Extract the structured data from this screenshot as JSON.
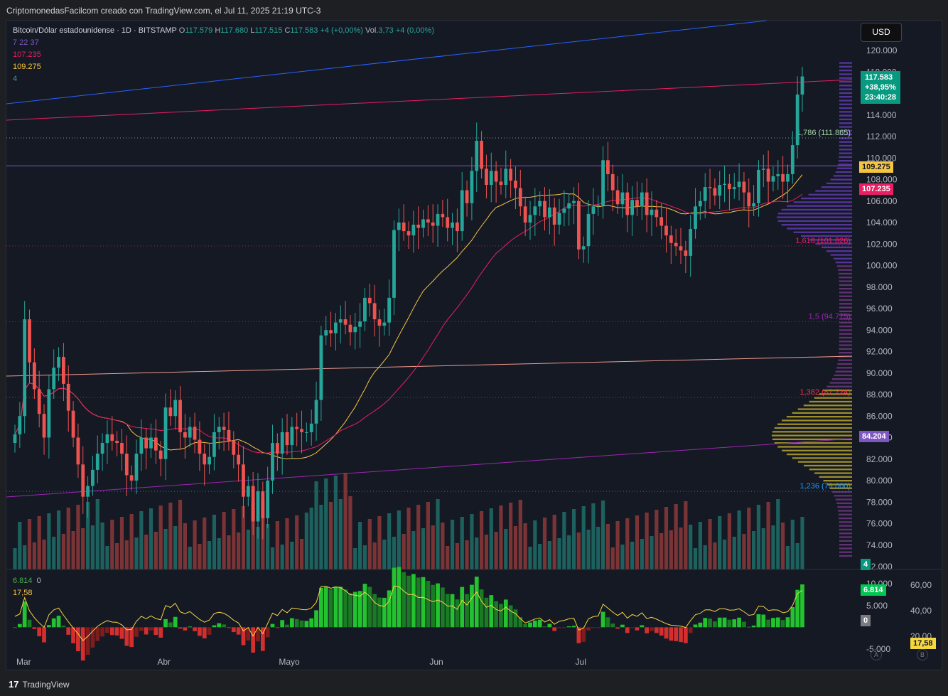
{
  "header": {
    "attribution": "CriptomonedasFacilcom creado con TradingView.com, el Jul 11, 2025 21:19 UTC-3"
  },
  "legend": {
    "symbol": "Bitcoin/Dólar estadounidense · 1D · BITSTAMP",
    "open_k": "O",
    "open": "117.579",
    "high_k": "H",
    "high": "117.680",
    "low_k": "L",
    "low": "117.515",
    "close_k": "C",
    "close": "117.583",
    "change": "+4 (+0,00%)",
    "vol_k": "Vol.",
    "vol": "3,73",
    "vol_change": "+4 (0,00%)",
    "ma_params": "7  22  37",
    "ma_a": "107.235",
    "ma_b": "109.275",
    "count": "4"
  },
  "currency": "USD",
  "price_scale": {
    "ticks": [
      "120.000",
      "118.000",
      "116.000",
      "114.000",
      "112.000",
      "110.000",
      "108.000",
      "106.000",
      "104.000",
      "102.000",
      "100.000",
      "98.000",
      "96.000",
      "94.000",
      "92.000",
      "90.000",
      "88.000",
      "86.000",
      "84.000",
      "82.000",
      "80.000",
      "78.000",
      "76.000",
      "74.000",
      "72.000"
    ],
    "last_price": "117.583",
    "last_change": "+38,95%",
    "countdown": "23:40:28",
    "tag_109": "109.275",
    "tag_107": "107.235",
    "tag_84": "84.204",
    "tag_vol": "4"
  },
  "fib_levels": [
    {
      "label": "1,786 (111.865)",
      "price": 111865,
      "color": "#a5d6a7"
    },
    {
      "label": "1,618 (101.826)",
      "price": 101826,
      "color": "#e91e63"
    },
    {
      "label": "1,5 (94.775)",
      "price": 94775,
      "color": "#9c27b0"
    },
    {
      "label": "1,382 (87.724)",
      "price": 87724,
      "color": "#f23645"
    },
    {
      "label": "1,236 (79.000)",
      "price": 79000,
      "color": "#2196f3"
    }
  ],
  "oscillator": {
    "legend_value": "6.814",
    "legend_zero": "0",
    "legend_rsi": "17,58",
    "left_ticks": [
      "10.000",
      "5.000",
      "-5.000"
    ],
    "right_ticks": [
      "60,00",
      "40,00",
      "20,00"
    ],
    "tag_value": "6.814",
    "tag_zero": "0",
    "tag_rsi": "17,58"
  },
  "time_axis": [
    "Mar",
    "Abr",
    "Mayo",
    "Jun",
    "Jul"
  ],
  "scale_buttons": {
    "a": "A",
    "b": "B"
  },
  "footer": {
    "brand": "TradingView"
  },
  "colors": {
    "up": "#26a69a",
    "down": "#ef5350",
    "ma_fast": "#f5c542",
    "ma_slow": "#e91e63",
    "bg": "#151924"
  },
  "chart_data": {
    "type": "candlestick",
    "title": "Bitcoin/Dólar estadounidense · 1D · BITSTAMP",
    "x_labels": [
      "Mar",
      "Abr",
      "Mayo",
      "Jun",
      "Jul"
    ],
    "ylim": [
      72000,
      121000
    ],
    "y_ticks": [
      120000,
      118000,
      116000,
      114000,
      112000,
      110000,
      108000,
      106000,
      104000,
      102000,
      100000,
      98000,
      96000,
      94000,
      92000,
      90000,
      88000,
      86000,
      84000,
      82000,
      80000,
      78000,
      76000,
      74000,
      72000
    ],
    "series": [
      {
        "name": "BTC/USD",
        "closes": [
          84300,
          86000,
          95000,
          91000,
          88500,
          86200,
          84000,
          88500,
          90500,
          91500,
          89000,
          86500,
          84000,
          81500,
          78500,
          79500,
          81000,
          82500,
          83500,
          84300,
          83700,
          83500,
          82500,
          80500,
          80000,
          82500,
          84000,
          83000,
          84000,
          82800,
          82000,
          86800,
          86000,
          87500,
          84500,
          84000,
          85000,
          83800,
          82500,
          81500,
          82200,
          84500,
          85000,
          84700,
          83700,
          82400,
          81500,
          78500,
          79500,
          76200,
          79000,
          76500,
          80000,
          83500,
          82500,
          84500,
          83300,
          85000,
          84800,
          84500,
          84500,
          85300,
          87500,
          93500,
          94000,
          93700,
          94700,
          95000,
          94500,
          93800,
          94300,
          94800,
          97000,
          96500,
          95000,
          94400,
          94700,
          97000,
          103300,
          104000,
          103200,
          102800,
          103800,
          103500,
          104300,
          104000,
          103700,
          104800,
          104500,
          103500,
          104000,
          103200,
          107000,
          105800,
          108800,
          111600,
          109000,
          107500,
          108800,
          107800,
          107500,
          109000,
          107900,
          107200,
          105500,
          104000,
          104700,
          105500,
          106000,
          104500,
          105400,
          103800,
          104900,
          105300,
          105800,
          106000,
          101500,
          101800,
          104800,
          105500,
          105600,
          109800,
          108500,
          107000,
          105700,
          106800,
          104700,
          106100,
          105500,
          106800,
          104700,
          105200,
          104500,
          103700,
          102800,
          102100,
          101800,
          101400,
          100900,
          103400,
          105500,
          106000,
          107300,
          107200,
          106500,
          107500,
          107600,
          107100,
          107300,
          107800,
          106800,
          105500,
          105800,
          108900,
          109000,
          107800,
          108300,
          108500,
          107800,
          108500,
          111200,
          115900,
          117583
        ]
      },
      {
        "name": "MA 22",
        "values_note": "yellow moving average"
      },
      {
        "name": "MA 37",
        "values_note": "pink moving average"
      }
    ],
    "indicators": {
      "ma_a": 107235,
      "ma_b": 109275,
      "poc": 84204
    },
    "volume_profile": {
      "side": "right"
    },
    "oscillator_range": [
      -6000,
      12000
    ]
  }
}
